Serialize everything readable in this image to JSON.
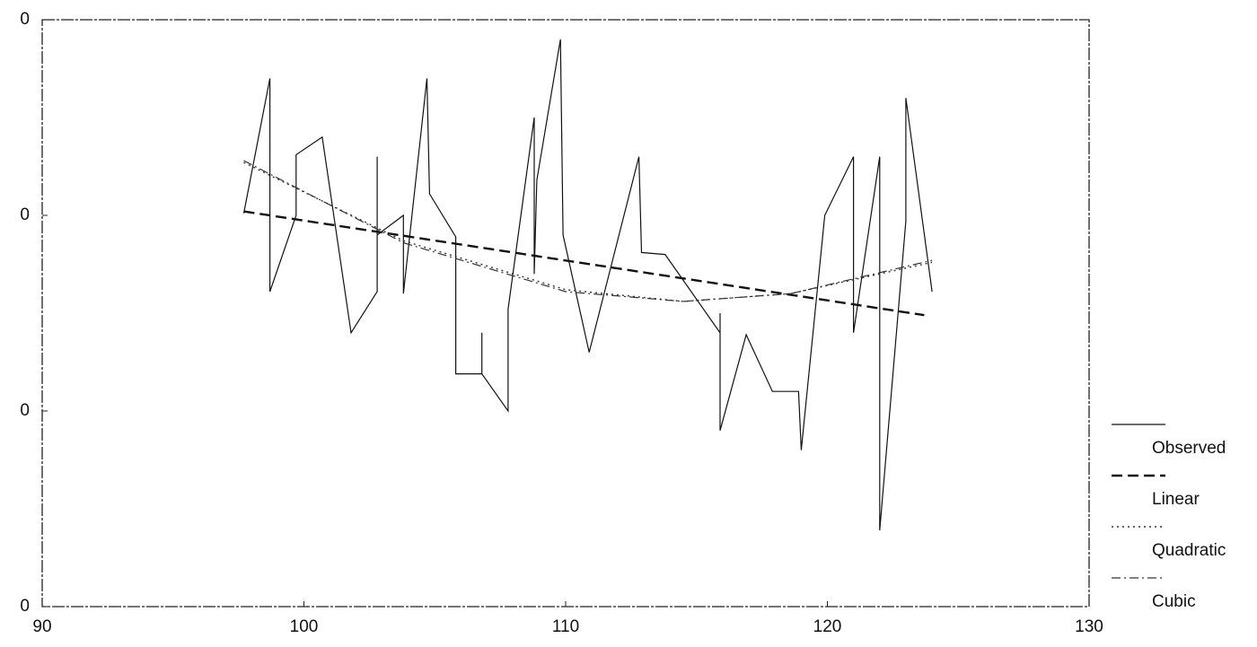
{
  "chart_data": {
    "type": "line",
    "xlim": [
      90,
      130
    ],
    "xticks": [
      90,
      100,
      110,
      120,
      130
    ],
    "ylim": [
      0,
      0.3
    ],
    "yticks": [
      {
        "value": 0,
        "label": "0"
      },
      {
        "value": 0.1,
        "label": "0"
      },
      {
        "value": 0.2,
        "label": "0"
      },
      {
        "value": 0.3,
        "label": "0"
      }
    ],
    "legend": "right",
    "series": [
      {
        "name": "Observed",
        "color": "#111111",
        "dash": "solid",
        "x": [
          97.7,
          98.7,
          98.7,
          99.7,
          99.7,
          100.7,
          101.8,
          102.8,
          102.8,
          102.8,
          103.8,
          103.8,
          104.7,
          104.8,
          105.8,
          105.8,
          106.8,
          106.8,
          106.8,
          107.8,
          107.8,
          108.8,
          108.8,
          108.9,
          109.8,
          109.9,
          110.9,
          112.8,
          112.9,
          113.8,
          115.9,
          115.9,
          115.9,
          116.9,
          117.9,
          118.9,
          119.0,
          119.9,
          121.0,
          121.0,
          122.0,
          122.0,
          123.0,
          123.0,
          124.0
        ],
        "values": [
          0.201,
          0.27,
          0.161,
          0.2,
          0.231,
          0.24,
          0.14,
          0.161,
          0.23,
          0.19,
          0.2,
          0.16,
          0.27,
          0.211,
          0.189,
          0.119,
          0.119,
          0.14,
          0.119,
          0.1,
          0.152,
          0.25,
          0.17,
          0.218,
          0.29,
          0.19,
          0.13,
          0.23,
          0.181,
          0.18,
          0.14,
          0.15,
          0.09,
          0.139,
          0.11,
          0.11,
          0.08,
          0.2,
          0.23,
          0.14,
          0.23,
          0.039,
          0.197,
          0.26,
          0.161
        ]
      },
      {
        "name": "Linear",
        "color": "#111111",
        "dash": "dashed",
        "x": [
          97.7,
          123.7
        ],
        "values": [
          0.202,
          0.149
        ]
      },
      {
        "name": "Quadratic",
        "color": "#333333",
        "dash": "dotted",
        "x": [
          97.7,
          103.8,
          110.0,
          114.5,
          118.6,
          124.0
        ],
        "values": [
          0.227,
          0.187,
          0.162,
          0.156,
          0.16,
          0.176
        ]
      },
      {
        "name": "Cubic",
        "color": "#333333",
        "dash": "dashdot",
        "x": [
          97.7,
          103.8,
          110.0,
          114.5,
          118.6,
          124.0
        ],
        "values": [
          0.228,
          0.186,
          0.161,
          0.156,
          0.16,
          0.177
        ]
      }
    ]
  }
}
